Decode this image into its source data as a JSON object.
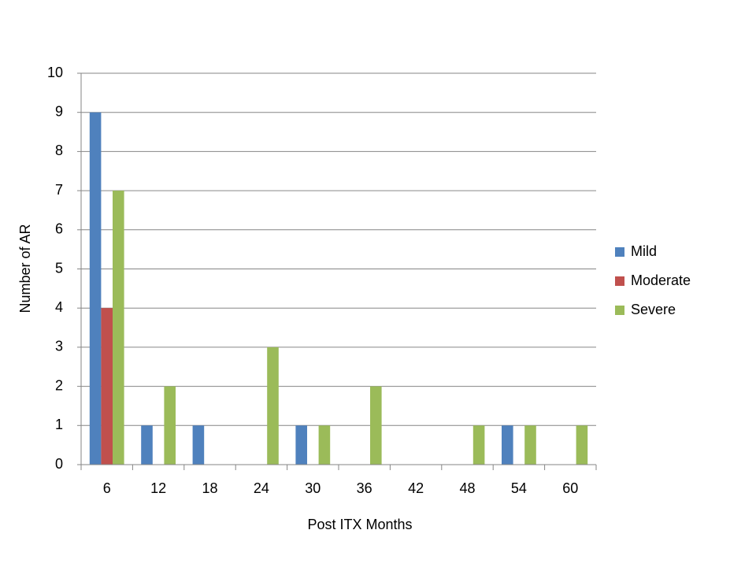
{
  "chart_data": {
    "type": "bar",
    "x_label": "Post ITX Months",
    "y_label": "Number of AR",
    "categories": [
      "6",
      "12",
      "18",
      "24",
      "30",
      "36",
      "42",
      "48",
      "54",
      "60"
    ],
    "series": [
      {
        "name": "Mild",
        "color": "#4f81bd",
        "values": [
          9,
          1,
          1,
          0,
          1,
          0,
          0,
          0,
          1,
          0
        ]
      },
      {
        "name": "Moderate",
        "color": "#c0504d",
        "values": [
          4,
          0,
          0,
          0,
          0,
          0,
          0,
          0,
          0,
          0
        ]
      },
      {
        "name": "Severe",
        "color": "#9bbb59",
        "values": [
          7,
          2,
          0,
          3,
          1,
          2,
          0,
          1,
          1,
          1
        ]
      }
    ],
    "ylim": [
      0,
      10
    ],
    "yticks": [
      0,
      1,
      2,
      3,
      4,
      5,
      6,
      7,
      8,
      9,
      10
    ],
    "grid": true,
    "legend": "right"
  }
}
